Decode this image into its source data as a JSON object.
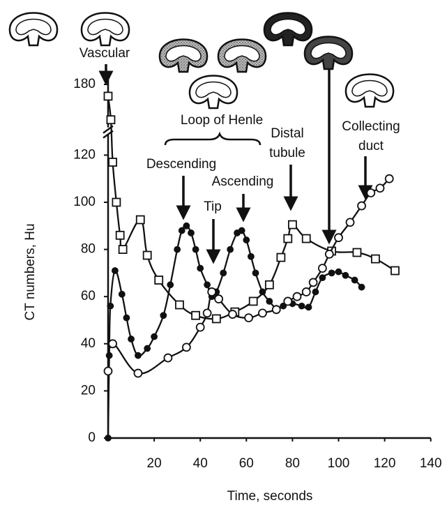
{
  "chart_data": {
    "type": "line",
    "xlabel": "Time, seconds",
    "ylabel": "CT numbers, Hu",
    "xlim": [
      0,
      140
    ],
    "xticks": [
      20,
      40,
      60,
      80,
      100,
      120,
      140
    ],
    "ylim": [
      0,
      185
    ],
    "yticks": [
      0,
      20,
      40,
      60,
      80,
      100,
      120,
      180
    ],
    "y_break": [
      130,
      160
    ],
    "grid": false,
    "annotations": [
      {
        "lines": [
          "Vascular"
        ]
      },
      {
        "lines": [
          "Loop of Henle"
        ]
      },
      {
        "lines": [
          "Descending"
        ]
      },
      {
        "lines": [
          "Tip"
        ]
      },
      {
        "lines": [
          "Ascending"
        ]
      },
      {
        "lines": [
          "Distal",
          "tubule"
        ]
      },
      {
        "lines": [
          "Collecting",
          "duct"
        ]
      }
    ],
    "series": [
      {
        "color": "#111111",
        "marker": "square",
        "filled": false,
        "x": [
          0,
          1.2,
          2,
          3.6,
          5.2,
          6.4,
          14,
          17,
          22,
          31,
          38,
          47,
          55,
          63,
          70,
          75,
          78,
          80,
          86,
          97,
          108,
          116,
          124.5
        ],
        "values": [
          175,
          165,
          117,
          100,
          86,
          80,
          92.6,
          77.5,
          67,
          56.5,
          52,
          50.6,
          53.5,
          58,
          65,
          76.6,
          84.6,
          90.5,
          84.6,
          79.3,
          78.7,
          76,
          71
        ]
      },
      {
        "color": "#111111",
        "marker": "circle",
        "filled": true,
        "x": [
          0,
          0.5,
          1,
          3,
          6,
          8,
          10,
          13,
          17,
          20,
          24,
          27,
          30,
          32,
          34,
          36,
          38,
          40,
          43,
          45,
          47,
          50,
          53,
          56,
          58,
          60,
          62,
          64,
          67,
          70,
          73,
          76,
          80,
          84,
          87,
          90,
          93,
          97,
          100,
          103,
          107,
          110
        ],
        "values": [
          0,
          35,
          56,
          71,
          61,
          51,
          42,
          35,
          38,
          43,
          52,
          65,
          80,
          88,
          90,
          87,
          80,
          72,
          65,
          60,
          62,
          70,
          80,
          87,
          88,
          84,
          77,
          70,
          62,
          58,
          55,
          56,
          57,
          56,
          55.5,
          62,
          68,
          70,
          70.5,
          69,
          67,
          64
        ]
      },
      {
        "color": "#111111",
        "marker": "circle",
        "filled": false,
        "x": [
          0,
          2,
          13,
          26,
          34,
          40,
          43,
          45,
          48,
          54,
          61,
          67,
          73,
          78,
          82,
          86,
          89,
          93,
          96,
          100,
          105,
          110,
          114,
          118,
          122
        ],
        "values": [
          28.4,
          40,
          27.5,
          34,
          38.5,
          47,
          53,
          62,
          59,
          52.5,
          51,
          53,
          54.5,
          58,
          60,
          62,
          66,
          72,
          78,
          85,
          91.5,
          98.5,
          104,
          106,
          110
        ]
      }
    ]
  }
}
